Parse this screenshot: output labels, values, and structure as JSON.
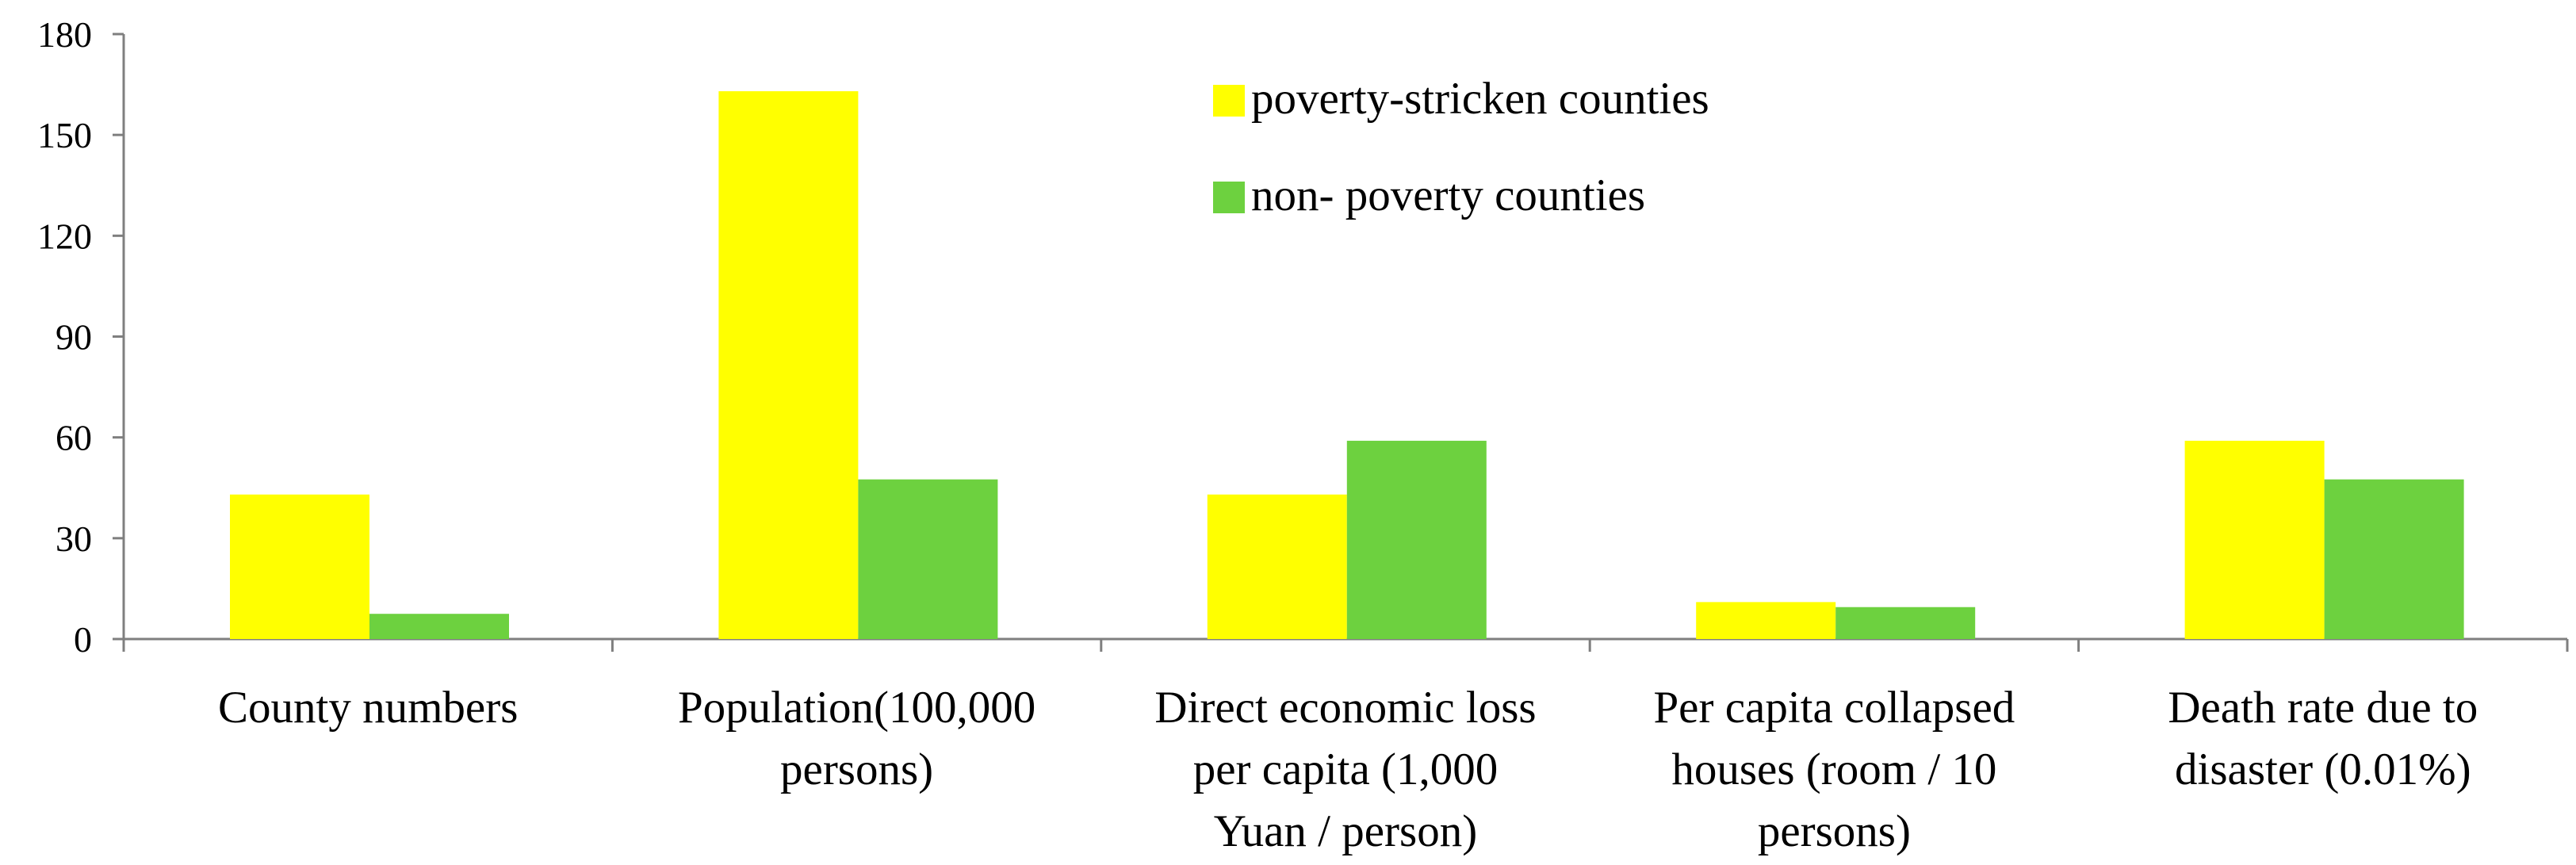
{
  "chart_data": {
    "type": "bar",
    "categories": [
      [
        "County numbers"
      ],
      [
        "Population(100,000",
        "persons)"
      ],
      [
        "Direct economic loss",
        "per capita (1,000",
        "Yuan / person)"
      ],
      [
        "Per capita collapsed",
        "houses (room / 10",
        "persons)"
      ],
      [
        "Death rate due to",
        "disaster (0.01%)"
      ]
    ],
    "series": [
      {
        "name": "poverty-stricken counties",
        "color": "#FFFF00",
        "values": [
          43,
          163,
          43,
          11,
          59
        ]
      },
      {
        "name": "non- poverty counties",
        "color": "#6DD13F",
        "values": [
          7.5,
          47.5,
          59,
          9.5,
          47.5
        ]
      }
    ],
    "yticks": [
      "0",
      "30",
      "60",
      "90",
      "120",
      "150",
      "180"
    ],
    "ylim": [
      0,
      180
    ],
    "grid": false,
    "legend_position": "top-center"
  }
}
